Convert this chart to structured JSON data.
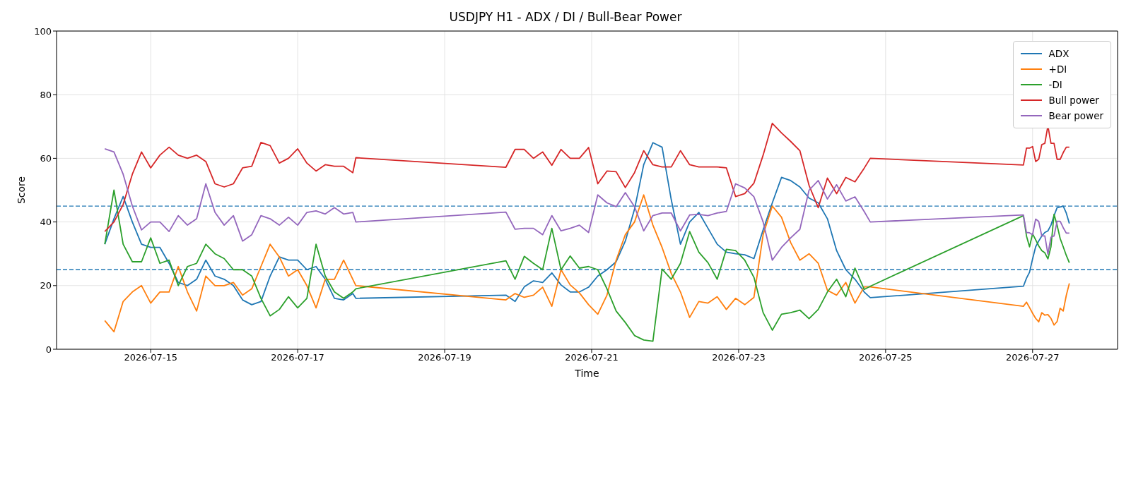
{
  "chart_data": {
    "type": "line",
    "title": "USDJPY H1 - ADX / DI / Bull-Bear Power",
    "xlabel": "Time",
    "ylabel": "Score",
    "x": [
      "2026-07-14T09:00",
      "2026-07-14T12:00",
      "2026-07-14T15:00",
      "2026-07-14T18:00",
      "2026-07-14T21:00",
      "2026-07-15T00:00",
      "2026-07-15T03:00",
      "2026-07-15T06:00",
      "2026-07-15T09:00",
      "2026-07-15T12:00",
      "2026-07-15T15:00",
      "2026-07-15T18:00",
      "2026-07-15T21:00",
      "2026-07-16T00:00",
      "2026-07-16T03:00",
      "2026-07-16T06:00",
      "2026-07-16T09:00",
      "2026-07-16T12:00",
      "2026-07-16T15:00",
      "2026-07-16T18:00",
      "2026-07-16T21:00",
      "2026-07-17T00:00",
      "2026-07-17T03:00",
      "2026-07-17T06:00",
      "2026-07-17T09:00",
      "2026-07-17T12:00",
      "2026-07-17T15:00",
      "2026-07-17T18:00",
      "2026-07-17T19:00",
      "2026-07-19T20:00",
      "2026-07-19T23:00",
      "2026-07-20T02:00",
      "2026-07-20T05:00",
      "2026-07-20T08:00",
      "2026-07-20T11:00",
      "2026-07-20T14:00",
      "2026-07-20T17:00",
      "2026-07-20T20:00",
      "2026-07-20T23:00",
      "2026-07-21T02:00",
      "2026-07-21T05:00",
      "2026-07-21T08:00",
      "2026-07-21T11:00",
      "2026-07-21T14:00",
      "2026-07-21T17:00",
      "2026-07-21T20:00",
      "2026-07-21T23:00",
      "2026-07-22T02:00",
      "2026-07-22T05:00",
      "2026-07-22T08:00",
      "2026-07-22T11:00",
      "2026-07-22T14:00",
      "2026-07-22T17:00",
      "2026-07-22T20:00",
      "2026-07-22T23:00",
      "2026-07-23T02:00",
      "2026-07-23T05:00",
      "2026-07-23T08:00",
      "2026-07-23T11:00",
      "2026-07-23T14:00",
      "2026-07-23T17:00",
      "2026-07-23T20:00",
      "2026-07-23T23:00",
      "2026-07-24T02:00",
      "2026-07-24T05:00",
      "2026-07-24T08:00",
      "2026-07-24T11:00",
      "2026-07-24T14:00",
      "2026-07-24T17:00",
      "2026-07-24T19:00",
      "2026-07-26T21:00",
      "2026-07-26T22:00",
      "2026-07-26T23:00",
      "2026-07-27T00:00",
      "2026-07-27T01:00",
      "2026-07-27T02:00",
      "2026-07-27T03:00",
      "2026-07-27T04:00",
      "2026-07-27T05:00",
      "2026-07-27T06:00",
      "2026-07-27T07:00",
      "2026-07-27T08:00",
      "2026-07-27T09:00",
      "2026-07-27T10:00",
      "2026-07-27T11:00",
      "2026-07-27T12:00"
    ],
    "series": [
      {
        "name": "ADX",
        "color": "#1f77b4",
        "values": [
          33,
          41,
          48,
          40,
          33,
          32,
          32,
          27,
          21,
          20,
          22,
          28,
          23,
          22,
          20,
          15.5,
          14,
          15,
          23,
          29,
          28,
          28,
          25,
          26,
          22,
          16,
          15.5,
          17.5,
          16,
          17,
          15,
          19.6,
          21.5,
          21,
          24,
          20.2,
          18,
          18,
          19.5,
          23,
          25,
          27.5,
          34,
          44,
          58,
          64.9,
          63.5,
          47,
          33,
          40,
          43,
          38,
          33,
          30.5,
          30,
          29.7,
          28.5,
          37.5,
          46,
          54,
          53,
          51,
          47.5,
          46,
          41,
          31,
          25,
          22,
          18,
          16.2,
          19.8,
          22.3,
          24.2,
          28.4,
          32.2,
          34,
          35.6,
          36.7,
          37.2,
          39,
          42,
          44.5,
          44.7,
          45,
          42.8,
          39.5
        ]
      },
      {
        "name": "+DI",
        "color": "#ff7f0e",
        "values": [
          9,
          5.5,
          15,
          18,
          20,
          14.5,
          18,
          18,
          26,
          18,
          12,
          23,
          20,
          20,
          21,
          17,
          19,
          26,
          33,
          29,
          23,
          25,
          20,
          13,
          22,
          22,
          28,
          22,
          20,
          15.5,
          17.5,
          16.3,
          17,
          19.5,
          13.5,
          25,
          20.2,
          17.7,
          14,
          11,
          17,
          28,
          36,
          40,
          48.5,
          39,
          32,
          23.8,
          18,
          10,
          15,
          14.5,
          16.5,
          12.5,
          16,
          14,
          16.3,
          36,
          45,
          41.5,
          33.5,
          28,
          30,
          27,
          18.5,
          17,
          21,
          14.5,
          19.6,
          19.6,
          13.5,
          14.8,
          13.1,
          11.3,
          9.7,
          8.6,
          11.5,
          10.7,
          10.9,
          9.7,
          7.6,
          8.7,
          12.9,
          12,
          16.9,
          20.7
        ]
      },
      {
        "name": "-DI",
        "color": "#2ca02c",
        "values": [
          33,
          50,
          33,
          27.5,
          27.5,
          35,
          27,
          28,
          20,
          26,
          27,
          33,
          30,
          28.5,
          25,
          25,
          23,
          16,
          10.5,
          12.5,
          16.5,
          13,
          16,
          33,
          23,
          18,
          16,
          18,
          19,
          27.8,
          22,
          29.2,
          27,
          25,
          38,
          25,
          29.3,
          25.5,
          26,
          25,
          19,
          12,
          8.4,
          4.3,
          2.9,
          2.5,
          25.2,
          22,
          27,
          37,
          30.5,
          27.2,
          22,
          31.4,
          31,
          28,
          22.6,
          11.5,
          6,
          11,
          11.5,
          12.3,
          9.6,
          12.5,
          18,
          22,
          16.5,
          25.5,
          18.8,
          19.8,
          42,
          35.6,
          32.2,
          36.3,
          34.4,
          32.5,
          31,
          30.3,
          28.4,
          32.2,
          42.4,
          39,
          34.8,
          32.2,
          29.5,
          27.2
        ]
      },
      {
        "name": "Bull power",
        "color": "#d62728",
        "values": [
          37,
          40,
          45.5,
          55,
          62,
          57,
          61,
          63.5,
          61,
          60,
          61,
          59,
          52,
          51,
          52,
          57,
          57.5,
          65,
          64,
          58.5,
          60,
          63,
          58.5,
          56,
          58,
          57.5,
          57.5,
          55.5,
          60.2,
          57.2,
          62.8,
          62.8,
          60,
          62,
          57.8,
          62.8,
          60,
          60,
          63.4,
          52,
          56,
          55.8,
          50.8,
          55.5,
          62.4,
          58,
          57.3,
          57.3,
          62.4,
          58,
          57.3,
          57.3,
          57.3,
          57,
          48,
          48.9,
          52.2,
          61,
          71,
          68,
          65.3,
          62.4,
          51.5,
          44.5,
          53.8,
          48.9,
          54,
          52.6,
          56.9,
          60,
          57.9,
          63.2,
          63.2,
          63.7,
          59,
          59.7,
          64.3,
          64.7,
          70.2,
          64.7,
          64.7,
          59.7,
          59.7,
          61.8,
          63.5,
          63.5
        ]
      },
      {
        "name": "Bear power",
        "color": "#9467bd",
        "values": [
          63,
          62,
          55,
          45,
          37.5,
          40,
          40,
          37,
          42,
          39,
          41,
          52,
          43,
          39,
          42,
          34,
          36,
          42,
          41,
          39,
          41.5,
          39,
          43,
          43.5,
          42.5,
          44.5,
          42.5,
          43,
          40,
          43.1,
          37.7,
          38,
          38,
          36,
          42,
          37.2,
          38,
          39,
          36.7,
          48.5,
          46,
          44.8,
          49.2,
          44.8,
          37.2,
          42,
          42.8,
          42.8,
          37.2,
          42.2,
          42.4,
          42,
          42.8,
          43.3,
          52,
          50.7,
          47.9,
          40,
          28,
          32,
          35,
          37.7,
          50,
          53,
          47.2,
          51.7,
          46.6,
          47.9,
          43.3,
          40,
          42.2,
          36.7,
          36.6,
          36,
          40.9,
          40.2,
          35.6,
          35.6,
          29.9,
          35.2,
          35.6,
          40.2,
          40.2,
          38.2,
          36.5,
          36.5
        ]
      }
    ],
    "xlim": [
      "2026-07-13T17:15",
      "2026-07-28T03:45"
    ],
    "xticks": [
      "2026-07-15",
      "2026-07-17",
      "2026-07-19",
      "2026-07-21",
      "2026-07-23",
      "2026-07-25",
      "2026-07-27"
    ],
    "ylim": [
      0,
      100
    ],
    "yticks": [
      0,
      20,
      40,
      60,
      80,
      100
    ],
    "ref_lines": [
      {
        "axis": "y",
        "value": 45,
        "color": "#1f77b4",
        "line_style": "dashed"
      },
      {
        "axis": "y",
        "value": 25,
        "color": "#1f77b4",
        "line_style": "dashed"
      }
    ],
    "grid": true,
    "legend": "top right"
  }
}
